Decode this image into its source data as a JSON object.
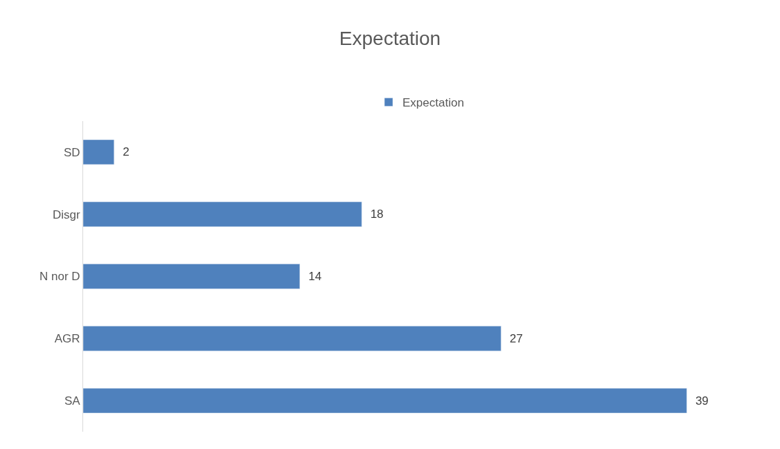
{
  "chart_data": {
    "type": "bar",
    "title": "Expectation",
    "orientation": "horizontal",
    "categories": [
      "SD",
      "Disgr",
      "N nor D",
      "AGR",
      "SA"
    ],
    "series": [
      {
        "name": "Expectation",
        "color": "#4f81bd",
        "values": [
          2,
          18,
          14,
          27,
          39
        ]
      }
    ],
    "data_labels": true,
    "legend": "top"
  }
}
